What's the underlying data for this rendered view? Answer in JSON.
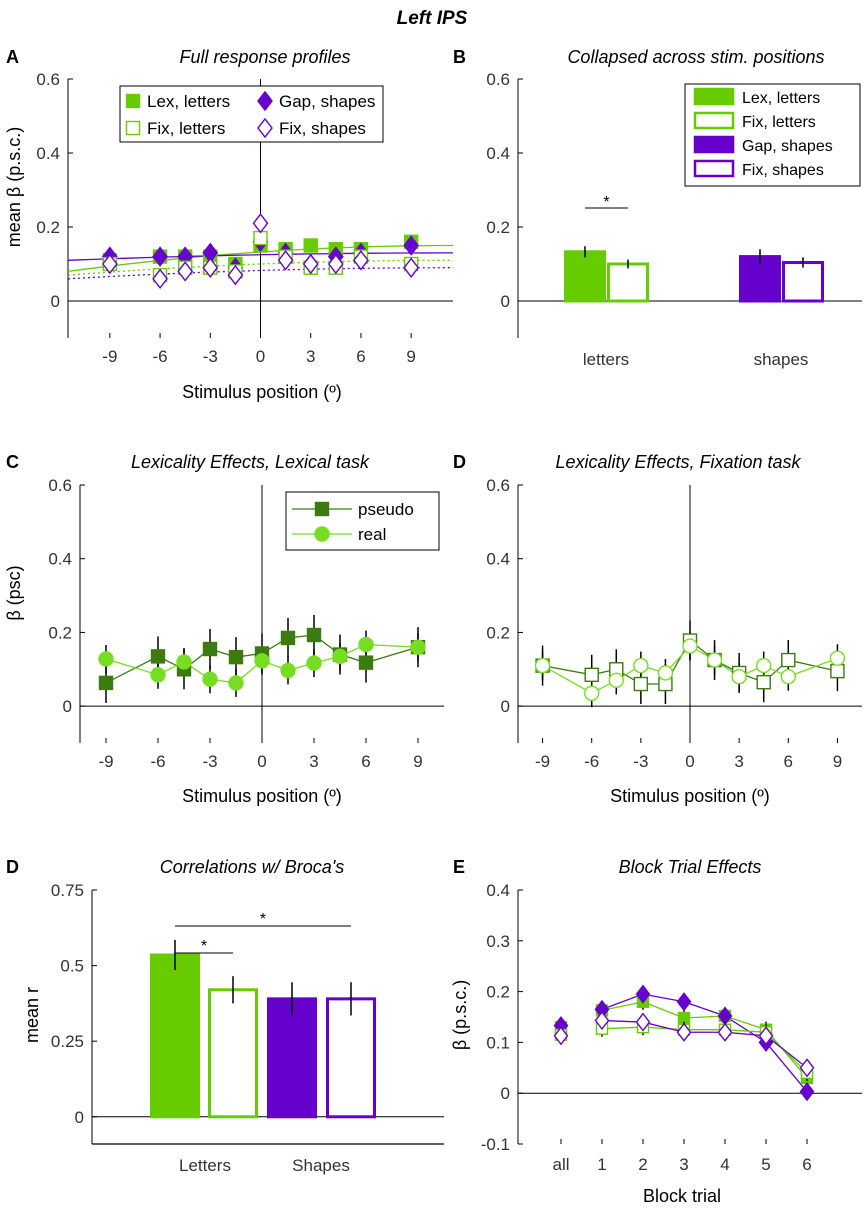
{
  "figure_title": "Left IPS",
  "colors": {
    "letters": "#66cc00",
    "shapes": "#6600cc",
    "pseudo": "#3d7a10",
    "real": "#77dd22",
    "axis": "#000000",
    "tick": "#333333"
  },
  "chart_data": [
    {
      "id": "A",
      "panel_label": "A",
      "type": "scatter",
      "title": "Full response profiles",
      "xlabel": "Stimulus position (º)",
      "ylabel": "mean β (p.s.c.)",
      "xlim": [
        -11.5,
        11.5
      ],
      "ylim": [
        -0.1,
        0.6
      ],
      "xticks": [
        -9,
        -6,
        -3,
        0,
        3,
        6,
        9
      ],
      "yticks": [
        0,
        0.2,
        0.4,
        0.6
      ],
      "ytick_labels": [
        "0",
        "0.2",
        "0.4",
        "0.6"
      ],
      "legend_position": "top-left",
      "legend": [
        "Lex, letters",
        "Gap, shapes",
        "Fix, letters",
        "Fix, shapes"
      ],
      "x": [
        -9,
        -6,
        -4.5,
        -3,
        -1.5,
        0,
        1.5,
        3,
        4.5,
        6,
        9
      ],
      "series": [
        {
          "name": "Lex, letters",
          "values": [
            0.11,
            0.12,
            0.12,
            0.12,
            0.1,
            0.15,
            0.14,
            0.15,
            0.14,
            0.14,
            0.16
          ],
          "fit": [
            0.08,
            0.15
          ]
        },
        {
          "name": "Gap, shapes",
          "values": [
            0.12,
            0.12,
            0.12,
            0.13,
            0.09,
            0.16,
            0.13,
            0.1,
            0.12,
            0.13,
            0.15
          ],
          "fit": [
            0.11,
            0.13
          ]
        },
        {
          "name": "Fix, letters",
          "values": [
            0.1,
            0.07,
            0.09,
            0.09,
            0.08,
            0.17,
            0.12,
            0.09,
            0.09,
            0.12,
            0.1
          ],
          "fit": [
            0.07,
            0.11
          ]
        },
        {
          "name": "Fix, shapes",
          "values": [
            0.1,
            0.06,
            0.08,
            0.09,
            0.07,
            0.21,
            0.11,
            0.1,
            0.1,
            0.11,
            0.09
          ],
          "fit": [
            0.06,
            0.09
          ]
        }
      ]
    },
    {
      "id": "B",
      "panel_label": "B",
      "type": "bar",
      "title": "Collapsed across stim. positions",
      "ylim": [
        -0.1,
        0.6
      ],
      "yticks": [
        0,
        0.2,
        0.4,
        0.6
      ],
      "ytick_labels": [
        "0",
        "0.2",
        "0.4",
        "0.6"
      ],
      "categories": [
        "letters",
        "shapes"
      ],
      "legend_position": "top-right",
      "legend": [
        "Lex, letters",
        "Fix, letters",
        "Gap, shapes",
        "Fix, shapes"
      ],
      "series": [
        {
          "name": "Lex, letters",
          "values": [
            0.133,
            null
          ]
        },
        {
          "name": "Fix, letters",
          "values": [
            0.1,
            null
          ]
        },
        {
          "name": "Gap, shapes",
          "values": [
            null,
            0.12
          ]
        },
        {
          "name": "Fix, shapes",
          "values": [
            null,
            0.104
          ]
        }
      ],
      "errors": [
        0.015,
        0.012,
        0.02,
        0.014
      ],
      "significance": "*"
    },
    {
      "id": "C",
      "panel_label": "C",
      "type": "line",
      "title": "Lexicality Effects, Lexical task",
      "xlabel": "Stimulus position (º)",
      "ylabel": "β (psc)",
      "xlim": [
        -10.5,
        10.5
      ],
      "ylim": [
        -0.1,
        0.6
      ],
      "xticks": [
        -9,
        -6,
        -3,
        0,
        3,
        6,
        9
      ],
      "yticks": [
        0,
        0.2,
        0.4,
        0.6
      ],
      "ytick_labels": [
        "0",
        "0.2",
        "0.4",
        "0.6"
      ],
      "legend_position": "top-right",
      "legend": [
        "pseudo",
        "real"
      ],
      "x": [
        -9,
        -6,
        -4.5,
        -3,
        -1.5,
        0,
        1.5,
        3,
        4.5,
        6,
        9
      ],
      "series": [
        {
          "name": "pseudo",
          "values": [
            0.063,
            0.135,
            0.1,
            0.155,
            0.133,
            0.143,
            0.185,
            0.193,
            0.14,
            0.118,
            0.16
          ]
        },
        {
          "name": "real",
          "values": [
            0.128,
            0.085,
            0.12,
            0.073,
            0.063,
            0.123,
            0.097,
            0.117,
            0.135,
            0.167,
            0.16
          ]
        }
      ]
    },
    {
      "id": "D1",
      "panel_label": "D",
      "type": "line",
      "title": "Lexicality Effects, Fixation task",
      "xlabel": "Stimulus position (º)",
      "xlim": [
        -10.5,
        10.5
      ],
      "ylim": [
        -0.1,
        0.6
      ],
      "xticks": [
        -9,
        -6,
        -3,
        0,
        3,
        6,
        9
      ],
      "yticks": [
        0,
        0.2,
        0.4,
        0.6
      ],
      "ytick_labels": [
        "0",
        "0.2",
        "0.4",
        "0.6"
      ],
      "x": [
        -9,
        -6,
        -4.5,
        -3,
        -1.5,
        0,
        1.5,
        3,
        4.5,
        6,
        9
      ],
      "series": [
        {
          "name": "pseudo",
          "values": [
            0.11,
            0.085,
            0.1,
            0.06,
            0.06,
            0.178,
            0.125,
            0.09,
            0.065,
            0.125,
            0.095
          ]
        },
        {
          "name": "real",
          "values": [
            0.11,
            0.035,
            0.07,
            0.11,
            0.09,
            0.163,
            0.125,
            0.08,
            0.11,
            0.08,
            0.13
          ]
        }
      ]
    },
    {
      "id": "D2",
      "panel_label": "D",
      "type": "bar",
      "title": "Correlations w/ Broca's",
      "ylabel": "mean r",
      "ylim": [
        -0.09,
        0.75
      ],
      "yticks": [
        0,
        0.25,
        0.5,
        0.75
      ],
      "ytick_labels": [
        "0",
        "0.25",
        "0.5",
        "0.75"
      ],
      "categories": [
        "Letters",
        "Shapes"
      ],
      "series": [
        {
          "name": "Lex, letters",
          "values": [
            0.535,
            null
          ]
        },
        {
          "name": "Fix, letters",
          "values": [
            0.42,
            null
          ]
        },
        {
          "name": "Gap, shapes",
          "values": [
            null,
            0.39
          ]
        },
        {
          "name": "Fix, shapes",
          "values": [
            null,
            0.39
          ]
        }
      ],
      "errors": [
        0.05,
        0.045,
        0.055,
        0.055
      ],
      "significance": [
        "*",
        "*"
      ]
    },
    {
      "id": "E",
      "panel_label": "E",
      "type": "line",
      "title": "Block Trial Effects",
      "xlabel": "Block trial",
      "ylabel": "β (p.s.c.)",
      "ylim": [
        -0.1,
        0.4
      ],
      "yticks": [
        -0.1,
        0,
        0.1,
        0.2,
        0.3,
        0.4
      ],
      "ytick_labels": [
        "-0.1",
        "0",
        "0.1",
        "0.2",
        "0.3",
        "0.4"
      ],
      "categories": [
        "all",
        "1",
        "2",
        "3",
        "4",
        "5",
        "6"
      ],
      "series": [
        {
          "name": "Lex, letters",
          "values": [
            0.13,
            0.163,
            0.18,
            0.148,
            0.152,
            0.125,
            0.03
          ]
        },
        {
          "name": "Gap, shapes",
          "values": [
            0.133,
            0.165,
            0.195,
            0.18,
            0.152,
            0.1,
            0.003
          ]
        },
        {
          "name": "Fix, letters",
          "values": [
            0.115,
            0.127,
            0.13,
            0.125,
            0.125,
            0.12,
            0.04
          ]
        },
        {
          "name": "Fix, shapes",
          "values": [
            0.113,
            0.143,
            0.14,
            0.12,
            0.12,
            0.113,
            0.05
          ]
        }
      ]
    }
  ]
}
